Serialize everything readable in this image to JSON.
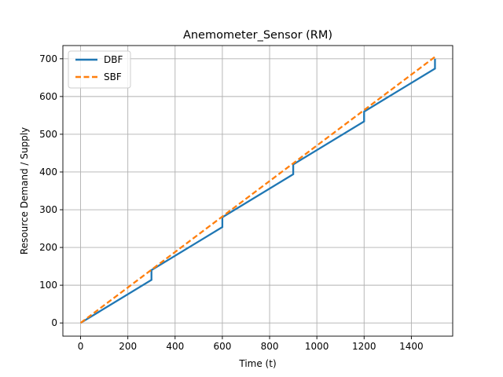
{
  "chart_data": {
    "type": "line",
    "title": "Anemometer_Sensor (RM)",
    "xlabel": "Time (t)",
    "ylabel": "Resource Demand / Supply",
    "xlim": [
      -75,
      1575
    ],
    "ylim": [
      -35,
      735
    ],
    "xticks": [
      0,
      200,
      400,
      600,
      800,
      1000,
      1200,
      1400
    ],
    "yticks": [
      0,
      100,
      200,
      300,
      400,
      500,
      600,
      700
    ],
    "grid": true,
    "legend_position": "upper left",
    "series": [
      {
        "name": "DBF",
        "color": "#1f77b4",
        "style": "solid",
        "x": [
          0,
          300,
          300,
          600,
          600,
          900,
          900,
          1200,
          1200,
          1500,
          1500
        ],
        "y": [
          0,
          114,
          140,
          254,
          280,
          394,
          420,
          534,
          560,
          674,
          700
        ]
      },
      {
        "name": "SBF",
        "color": "#ff7f0e",
        "style": "dashed",
        "x": [
          0,
          1500
        ],
        "y": [
          0,
          705
        ]
      }
    ]
  }
}
